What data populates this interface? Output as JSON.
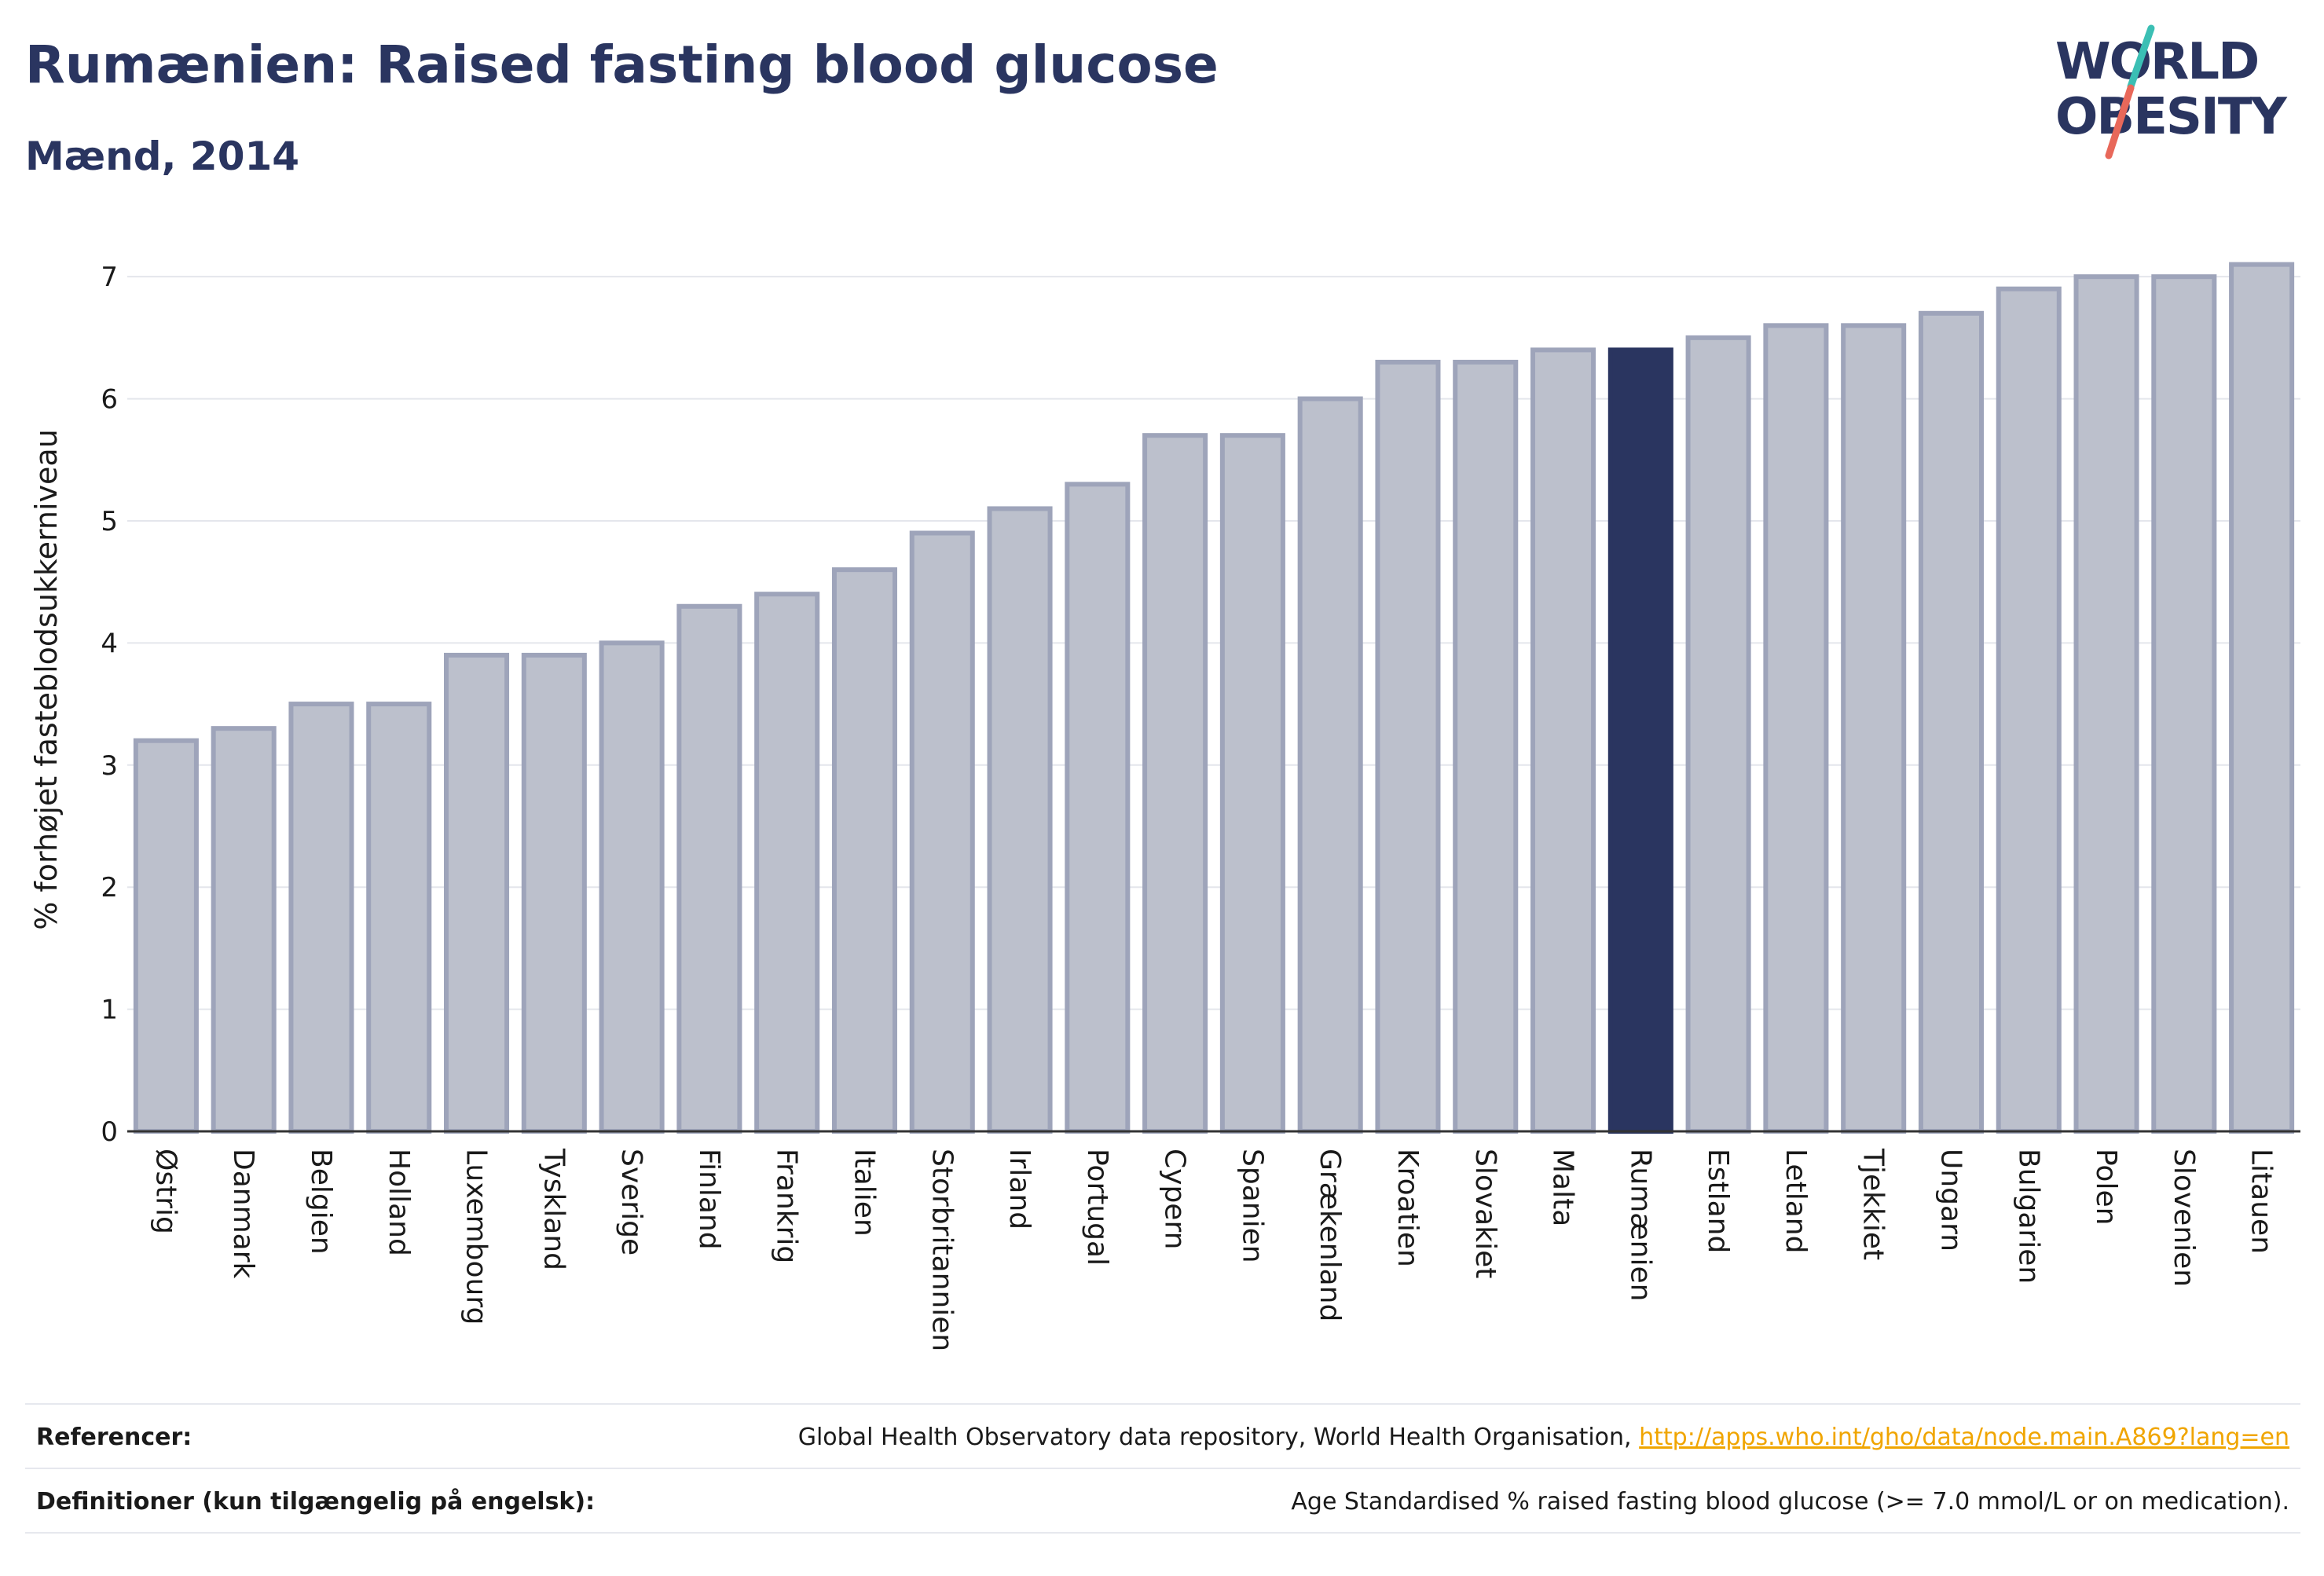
{
  "header": {
    "title": "Rumænien: Raised fasting blood glucose",
    "subtitle": "Mænd, 2014"
  },
  "logo": {
    "line1": "WORLD",
    "line2": "OBESITY",
    "colors": {
      "text": "#2a3560",
      "slash_teal": "#3bbfb4",
      "slash_red": "#e8685a"
    }
  },
  "chart_data": {
    "type": "bar",
    "ylabel": "% forhøjet fasteblodsukkerniveau",
    "ylim": [
      0,
      7.4
    ],
    "yticks": [
      0,
      1,
      2,
      3,
      4,
      5,
      6,
      7
    ],
    "grid": true,
    "highlight": "Rumænien",
    "colors": {
      "bar": "#bcc0cc",
      "bar_edge": "#9ea4ba",
      "highlight": "#2a3560"
    },
    "categories": [
      "Østrig",
      "Danmark",
      "Belgien",
      "Holland",
      "Luxembourg",
      "Tyskland",
      "Sverige",
      "Finland",
      "Frankrig",
      "Italien",
      "Storbritannien",
      "Irland",
      "Portugal",
      "Cypern",
      "Spanien",
      "Grækenland",
      "Kroatien",
      "Slovakiet",
      "Malta",
      "Rumænien",
      "Estland",
      "Letland",
      "Tjekkiet",
      "Ungarn",
      "Bulgarien",
      "Polen",
      "Slovenien",
      "Litauen"
    ],
    "values": [
      3.2,
      3.3,
      3.5,
      3.5,
      3.9,
      3.9,
      4.0,
      4.3,
      4.4,
      4.6,
      4.9,
      5.1,
      5.3,
      5.7,
      5.7,
      6.0,
      6.3,
      6.3,
      6.4,
      6.4,
      6.5,
      6.6,
      6.6,
      6.7,
      6.9,
      7.0,
      7.0,
      7.1
    ]
  },
  "footer": {
    "references_label": "Referencer:",
    "references_text": "Global Health Observatory data repository, World Health Organisation,",
    "references_link": "http://apps.who.int/gho/data/node.main.A869?lang=en",
    "definitions_label": "Definitioner (kun tilgængelig på engelsk):",
    "definitions_text": "Age Standardised % raised fasting blood glucose (>= 7.0 mmol/L or on medication)."
  }
}
